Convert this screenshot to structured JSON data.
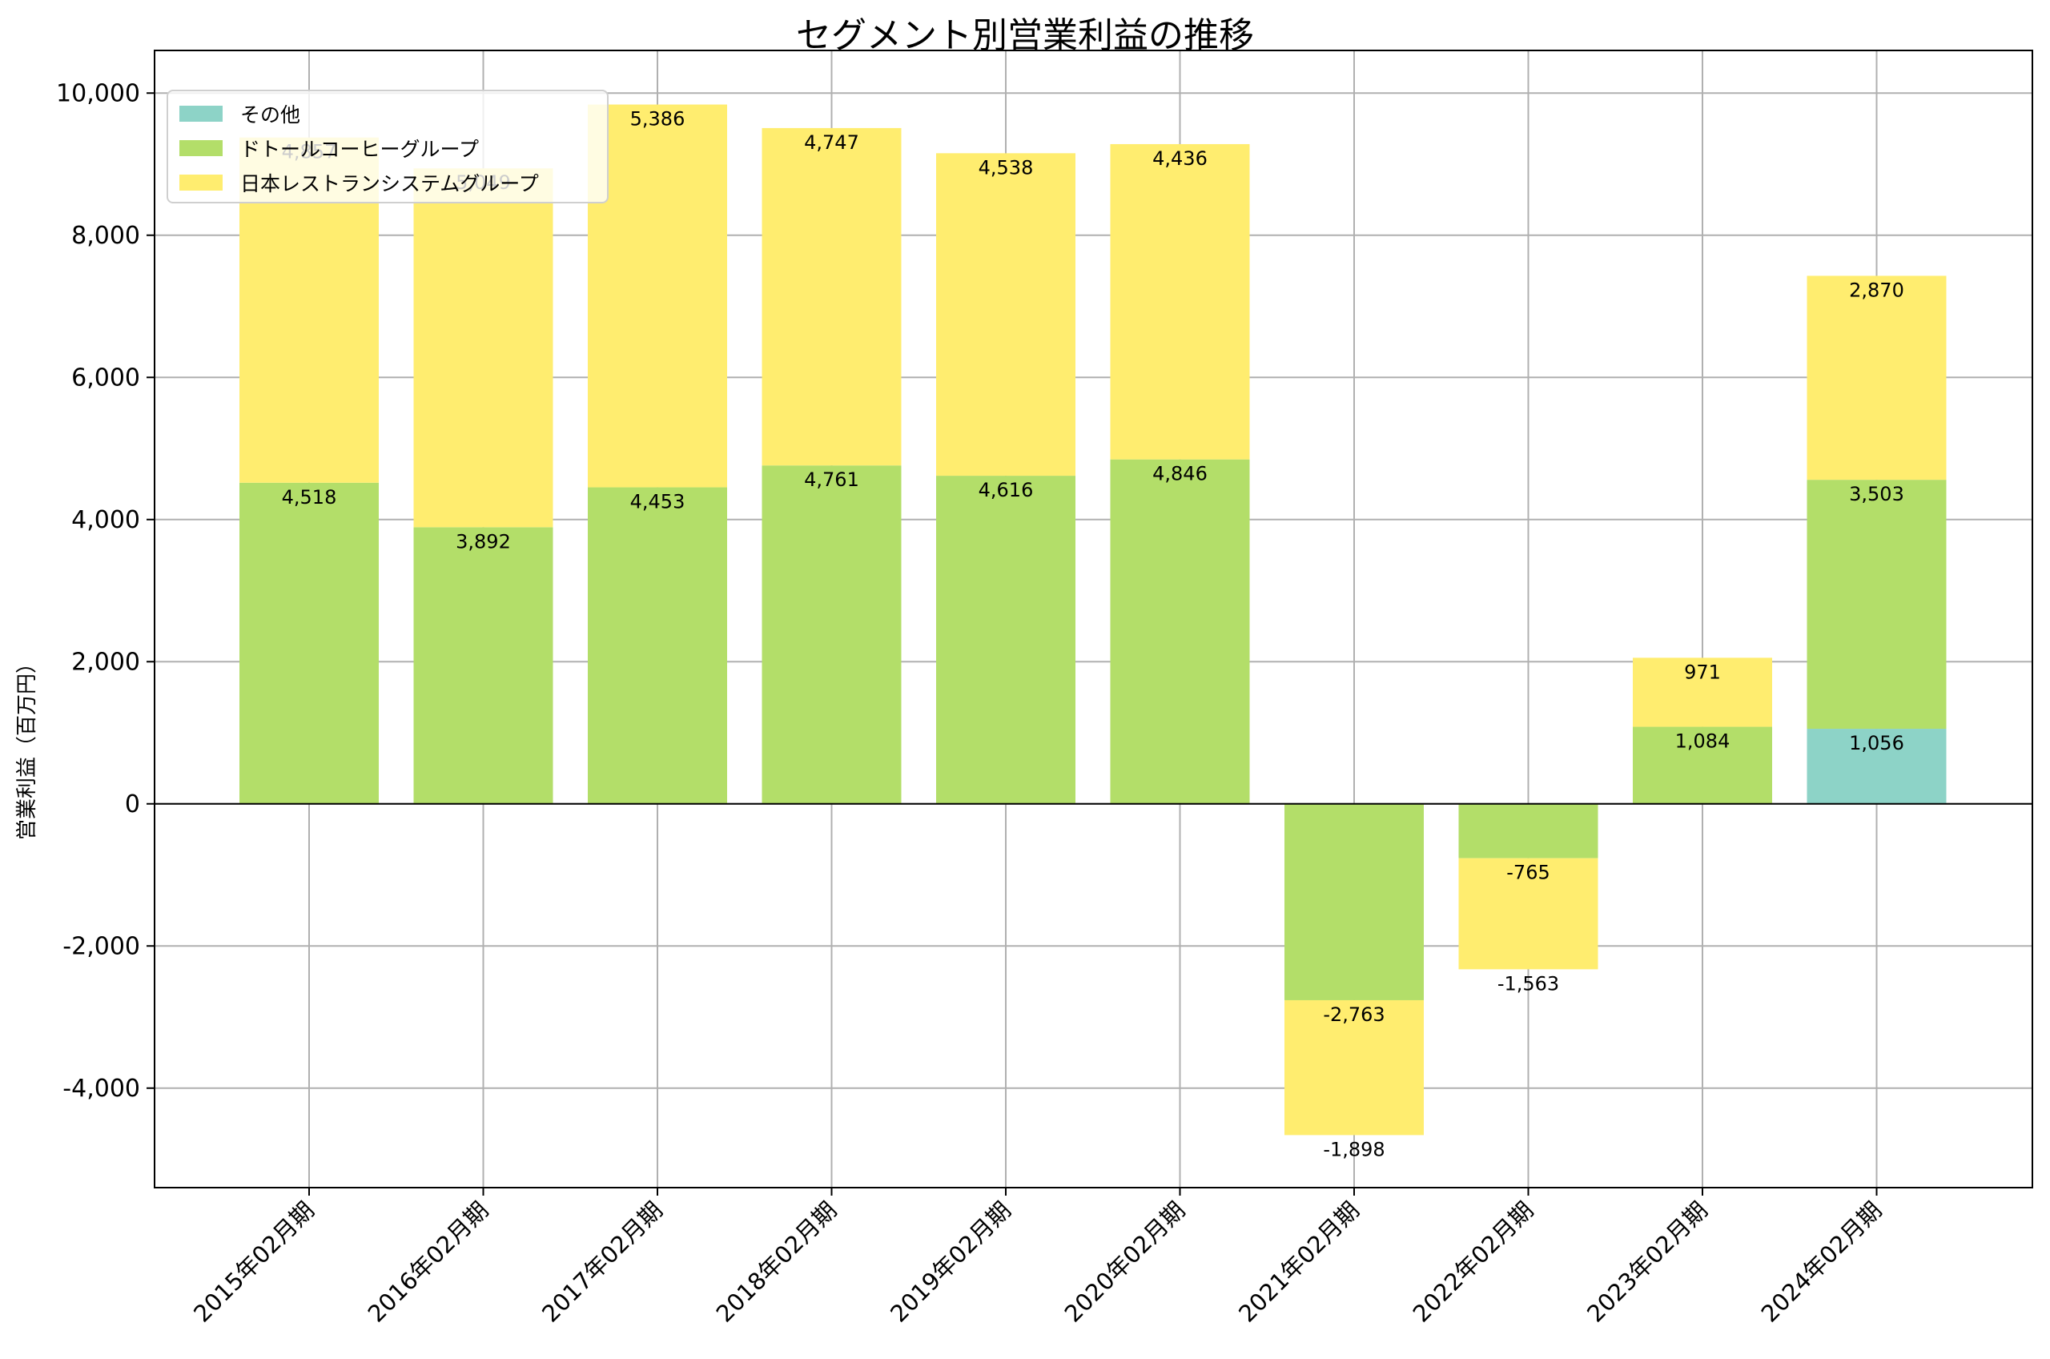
{
  "chart_data": {
    "type": "bar",
    "stacked": true,
    "title": "セグメント別営業利益の推移",
    "xlabel": "",
    "ylabel": "営業利益（百万円）",
    "ylim": [
      -5400,
      10600
    ],
    "yticks": [
      10000,
      8000,
      6000,
      4000,
      2000,
      0,
      -2000,
      -4000
    ],
    "ytick_labels": [
      "10,000",
      "8,000",
      "6,000",
      "4,000",
      "2,000",
      "0",
      "-2,000",
      "-4,000"
    ],
    "grid": true,
    "legend_position": "top-left",
    "categories": [
      "2015年02月期",
      "2016年02月期",
      "2017年02月期",
      "2018年02月期",
      "2019年02月期",
      "2020年02月期",
      "2021年02月期",
      "2022年02月期",
      "2023年02月期",
      "2024年02月期"
    ],
    "series": [
      {
        "name": "その他",
        "color": "#8dd3c7",
        "values": [
          null,
          null,
          null,
          null,
          null,
          null,
          null,
          null,
          null,
          1056
        ],
        "labels": [
          "",
          "",
          "",
          "",
          "",
          "",
          "",
          "",
          "",
          "1,056"
        ]
      },
      {
        "name": "ドトールコーヒーグループ",
        "color": "#b3de69",
        "values": [
          4518,
          3892,
          4453,
          4761,
          4616,
          4846,
          -2763,
          -765,
          1084,
          3503
        ],
        "labels": [
          "4,518",
          "3,892",
          "4,453",
          "4,761",
          "4,616",
          "4,846",
          "-2,763",
          "-765",
          "1,084",
          "3,503"
        ]
      },
      {
        "name": "日本レストランシステムグループ",
        "color": "#ffed6f",
        "values": [
          4857,
          5049,
          5386,
          4747,
          4538,
          4436,
          -1898,
          -1563,
          971,
          2870
        ],
        "labels": [
          "4,857",
          "5,049",
          "5,386",
          "4,747",
          "4,538",
          "4,436",
          "-1,898",
          "-1,563",
          "971",
          "2,870"
        ]
      }
    ]
  }
}
